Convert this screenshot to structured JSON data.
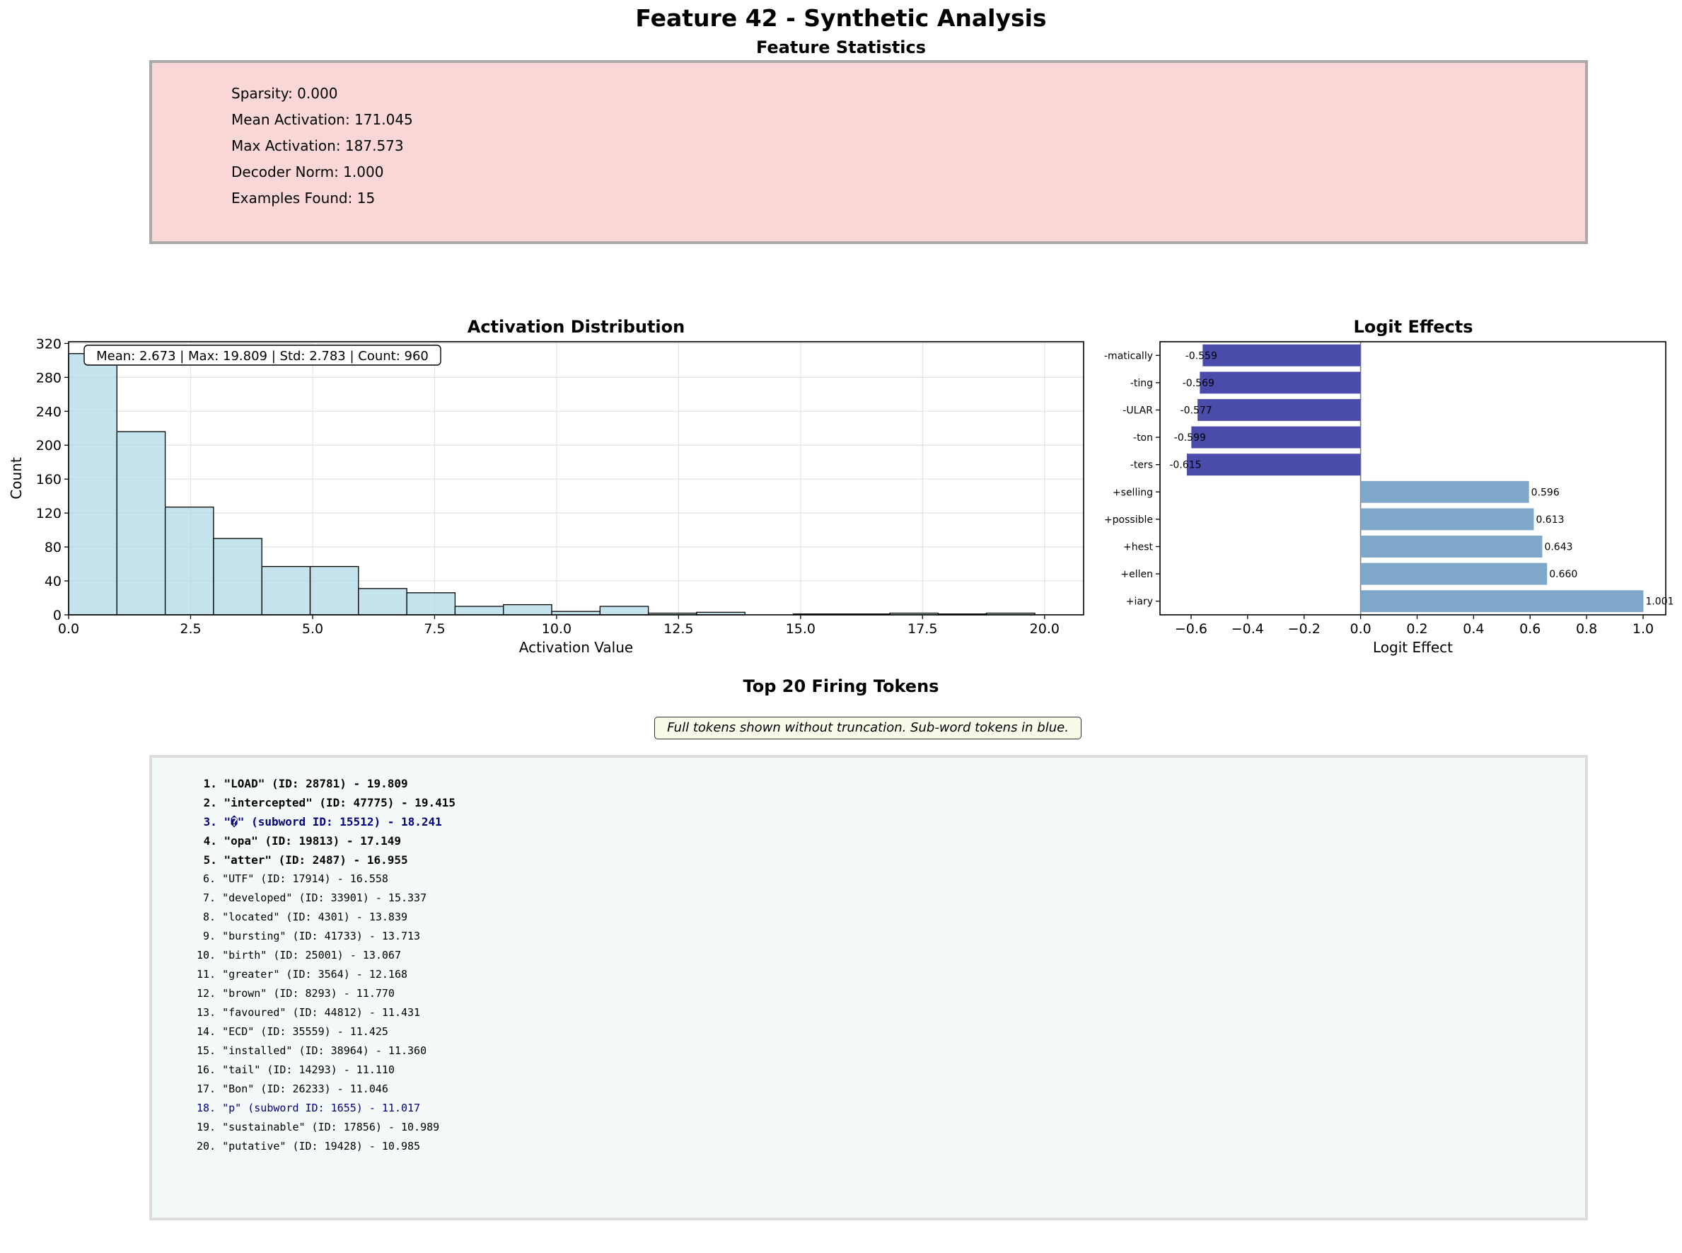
{
  "title": "Feature 42 - Synthetic Analysis",
  "stats": {
    "title": "Feature Statistics",
    "lines": [
      "Sparsity: 0.000",
      "Mean Activation: 171.045",
      "Max Activation: 187.573",
      "Decoder Norm: 1.000",
      "Examples Found: 15"
    ]
  },
  "chart_data": [
    {
      "type": "bar",
      "subtype": "histogram",
      "title": "Activation Distribution",
      "xlabel": "Activation Value",
      "ylabel": "Count",
      "xlim": [
        0,
        20.8
      ],
      "ylim": [
        0,
        322
      ],
      "xticks": [
        0,
        2.5,
        5,
        7.5,
        10,
        12.5,
        15,
        17.5,
        20
      ],
      "xtick_labels": [
        "0.0",
        "2.5",
        "5.0",
        "7.5",
        "10.0",
        "12.5",
        "15.0",
        "17.5",
        "20.0"
      ],
      "yticks": [
        0,
        40,
        80,
        120,
        160,
        200,
        240,
        280,
        320
      ],
      "ytick_labels": [
        "0",
        "40",
        "80",
        "120",
        "160",
        "200",
        "240",
        "280",
        "320"
      ],
      "bin_edges": [
        0,
        0.99,
        1.98,
        2.97,
        3.96,
        4.95,
        5.94,
        6.93,
        7.92,
        8.91,
        9.9,
        10.89,
        11.88,
        12.87,
        13.86,
        14.85,
        15.84,
        16.83,
        17.82,
        18.81,
        19.8
      ],
      "counts": [
        308,
        216,
        127,
        90,
        57,
        57,
        31,
        26,
        10,
        12,
        4,
        10,
        2,
        3,
        0,
        1,
        1,
        2,
        1,
        2
      ],
      "annotation": "Mean: 2.673 | Max: 19.809 | Std: 2.783 | Count: 960",
      "grid": true,
      "colors": {
        "bar": "#add8e6",
        "edge": "#000000"
      }
    },
    {
      "type": "bar",
      "orientation": "horizontal",
      "title": "Logit Effects",
      "xlabel": "Logit Effect",
      "xlim": [
        -0.71,
        1.08
      ],
      "xticks": [
        -0.6,
        -0.4,
        -0.2,
        0.0,
        0.2,
        0.4,
        0.6,
        0.8,
        1.0
      ],
      "xtick_labels": [
        "−0.6",
        "−0.4",
        "−0.2",
        "0.0",
        "0.2",
        "0.4",
        "0.6",
        "0.8",
        "1.0"
      ],
      "categories": [
        "-matically",
        "-ting",
        "-ULAR",
        "-ton",
        "-ters",
        "+selling",
        "+possible",
        "+hest",
        "+ellen",
        "+iary"
      ],
      "values": [
        -0.559,
        -0.569,
        -0.577,
        -0.599,
        -0.615,
        0.596,
        0.613,
        0.643,
        0.66,
        1.001
      ],
      "value_labels": [
        "-0.559",
        "-0.569",
        "-0.577",
        "-0.599",
        "-0.615",
        "0.596",
        "0.613",
        "0.643",
        "0.660",
        "1.001"
      ],
      "colors": {
        "negative": "#4b4bab",
        "positive": "#7fa7ca"
      }
    }
  ],
  "tokens": {
    "title": "Top 20 Firing Tokens",
    "note": "Full tokens shown without truncation. Sub-word tokens in blue.",
    "items": [
      {
        "text": " 1. \"LOAD\" (ID: 28781) - 19.809",
        "top": true,
        "subword": false
      },
      {
        "text": " 2. \"intercepted\" (ID: 47775) - 19.415",
        "top": true,
        "subword": false
      },
      {
        "text": " 3. \"�\" (subword ID: 15512) - 18.241",
        "top": true,
        "subword": true
      },
      {
        "text": " 4. \"opa\" (ID: 19813) - 17.149",
        "top": true,
        "subword": false
      },
      {
        "text": " 5. \"atter\" (ID: 2487) - 16.955",
        "top": true,
        "subword": false
      },
      {
        "text": " 6. \"UTF\" (ID: 17914) - 16.558",
        "top": false,
        "subword": false
      },
      {
        "text": " 7. \"developed\" (ID: 33901) - 15.337",
        "top": false,
        "subword": false
      },
      {
        "text": " 8. \"located\" (ID: 4301) - 13.839",
        "top": false,
        "subword": false
      },
      {
        "text": " 9. \"bursting\" (ID: 41733) - 13.713",
        "top": false,
        "subword": false
      },
      {
        "text": "10. \"birth\" (ID: 25001) - 13.067",
        "top": false,
        "subword": false
      },
      {
        "text": "11. \"greater\" (ID: 3564) - 12.168",
        "top": false,
        "subword": false
      },
      {
        "text": "12. \"brown\" (ID: 8293) - 11.770",
        "top": false,
        "subword": false
      },
      {
        "text": "13. \"favoured\" (ID: 44812) - 11.431",
        "top": false,
        "subword": false
      },
      {
        "text": "14. \"ECD\" (ID: 35559) - 11.425",
        "top": false,
        "subword": false
      },
      {
        "text": "15. \"installed\" (ID: 38964) - 11.360",
        "top": false,
        "subword": false
      },
      {
        "text": "16. \"tail\" (ID: 14293) - 11.110",
        "top": false,
        "subword": false
      },
      {
        "text": "17. \"Bon\" (ID: 26233) - 11.046",
        "top": false,
        "subword": false
      },
      {
        "text": "18. \"p\" (subword ID: 1655) - 11.017",
        "top": false,
        "subword": true
      },
      {
        "text": "19. \"sustainable\" (ID: 17856) - 10.989",
        "top": false,
        "subword": false
      },
      {
        "text": "20. \"putative\" (ID: 19428) - 10.985",
        "top": false,
        "subword": false
      }
    ]
  }
}
